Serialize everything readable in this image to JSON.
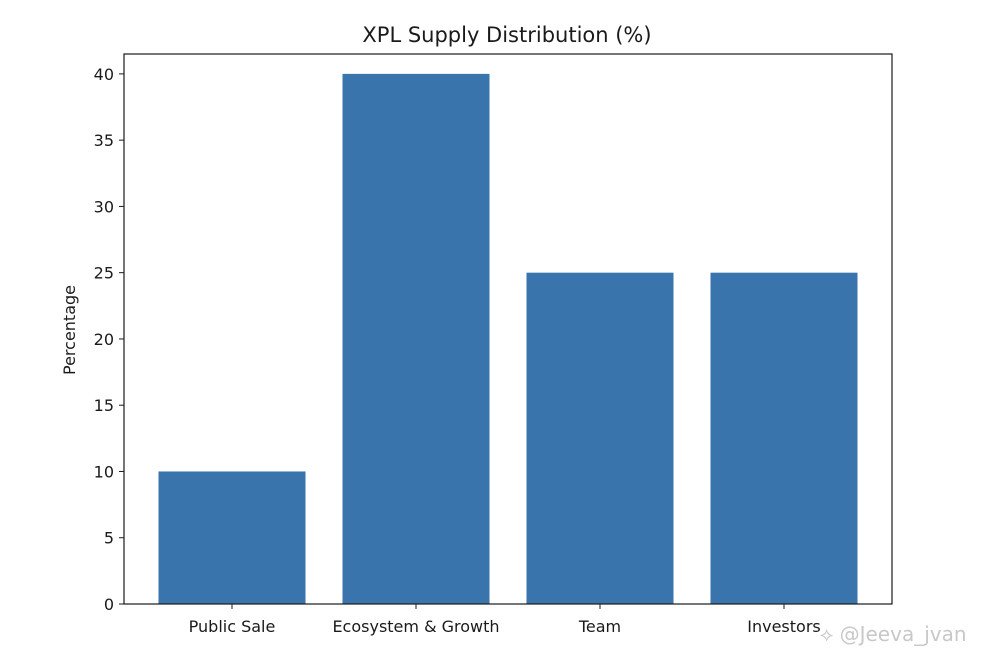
{
  "chart_data": {
    "type": "bar",
    "title": "XPL Supply Distribution (%)",
    "xlabel": "",
    "ylabel": "Percentage",
    "categories": [
      "Public Sale",
      "Ecosystem & Growth",
      "Team",
      "Investors"
    ],
    "values": [
      10,
      40,
      25,
      25
    ],
    "ylim": [
      0,
      41.5
    ],
    "yticks": [
      0,
      5,
      10,
      15,
      20,
      25,
      30,
      35,
      40
    ],
    "bar_color": "#3a74ad",
    "grid": false,
    "legend": "none"
  },
  "watermark": {
    "icon": "weibo-diamond-icon",
    "text": "@Jeeva_jvan"
  }
}
